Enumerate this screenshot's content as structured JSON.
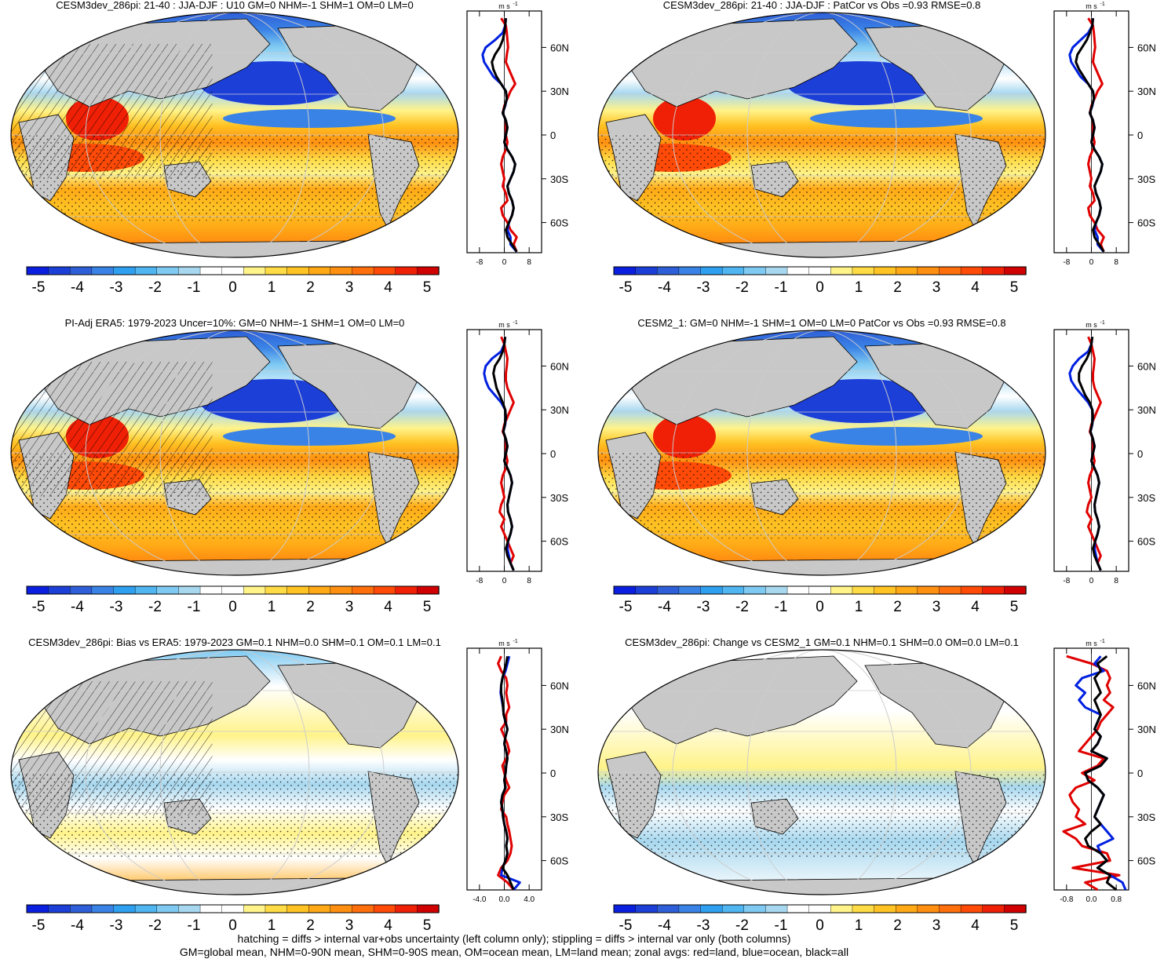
{
  "figure": {
    "footnote_line1": "hatching = diffs > internal var+obs uncertainty (left column only); stippling = diffs > internal var only (both columns)",
    "footnote_line2": "GM=global mean, NHM=0-90N mean, SHM=0-90S mean, OM=ocean mean, LM=land mean; zonal avgs: red=land, blue=ocean, black=all",
    "colorbar_ticks": [
      "-5",
      "-4",
      "-3",
      "-2",
      "-1",
      "0",
      "1",
      "2",
      "3",
      "4",
      "5"
    ],
    "colorbar_colors": [
      "#0a1fe0",
      "#1c3fd8",
      "#2f5fd8",
      "#3a83e6",
      "#2fa0f0",
      "#4fb6f2",
      "#7fcaf2",
      "#a8d8ef",
      "#ffffff",
      "#ffffff",
      "#fff38a",
      "#ffdb45",
      "#ffc324",
      "#ffa916",
      "#ff8f10",
      "#ff6f0c",
      "#ff4a08",
      "#f02006",
      "#d00000"
    ],
    "profile_unit": "m s",
    "profile_unit_exp": "-1",
    "lat_labels": [
      "60N",
      "30N",
      "0",
      "30S",
      "60S"
    ],
    "map_palette": {
      "gray_land": "#c8c8c8",
      "ocean_white": "#ffffff"
    }
  },
  "chart_data": [
    {
      "type": "heatmap",
      "panel": "top-left",
      "title": "CESM3dev_286pi: 21-40 : JJA-DJF : U10 GM=0 NHM=-1 SHM=1 OM=0 LM=0",
      "variable": "U10 JJA-DJF",
      "colorbar_range": [
        -5,
        5
      ],
      "hatching": true,
      "zonal_profile": {
        "xticks": [
          "-8",
          "0",
          "8"
        ],
        "xlim": [
          -12,
          12
        ],
        "lat": [
          80,
          75,
          70,
          65,
          60,
          55,
          50,
          45,
          40,
          35,
          30,
          25,
          20,
          15,
          10,
          5,
          0,
          -5,
          -10,
          -15,
          -20,
          -25,
          -30,
          -35,
          -40,
          -45,
          -50,
          -55,
          -60,
          -65,
          -70,
          -75,
          -80
        ],
        "all": [
          0.5,
          0.3,
          0,
          -0.5,
          -1.5,
          -3,
          -4,
          -3.5,
          -2.5,
          -1,
          0.5,
          0.8,
          0.2,
          -0.5,
          0.5,
          1,
          0.5,
          0,
          1,
          2.5,
          3.5,
          3,
          2,
          1,
          1.5,
          2.5,
          3,
          2.5,
          1.5,
          0.5,
          1,
          2.5,
          4
        ],
        "ocean": [
          0.5,
          0.3,
          -0.5,
          -3,
          -6,
          -7,
          -6.5,
          -5,
          -3.5,
          -1,
          0.5,
          0.8,
          0.3,
          -0.5,
          0.5,
          1,
          0.5,
          0,
          1,
          2.5,
          3.5,
          3,
          2,
          1,
          1.5,
          2.5,
          3,
          2.5,
          1.5,
          1,
          2,
          2,
          4
        ],
        "land": [
          -1,
          0.5,
          0.8,
          1,
          1.2,
          0.8,
          0.5,
          1.5,
          2.5,
          3.5,
          2,
          1,
          0,
          -0.5,
          0.5,
          0.5,
          0.5,
          1,
          0.5,
          -0.5,
          -1,
          -0.5,
          0,
          -0.5,
          0.5,
          1,
          -1,
          -0.5,
          1,
          2,
          4,
          3,
          4
        ]
      }
    },
    {
      "type": "heatmap",
      "panel": "top-right",
      "title": "CESM3dev_286pi: 21-40 : JJA-DJF : PatCor vs Obs =0.93 RMSE=0.8",
      "variable": "U10 JJA-DJF",
      "colorbar_range": [
        -5,
        5
      ],
      "hatching": false,
      "zonal_profile": {
        "xticks": [
          "-8",
          "0",
          "8"
        ],
        "xlim": [
          -12,
          12
        ],
        "lat": [
          80,
          75,
          70,
          65,
          60,
          55,
          50,
          45,
          40,
          35,
          30,
          25,
          20,
          15,
          10,
          5,
          0,
          -5,
          -10,
          -15,
          -20,
          -25,
          -30,
          -35,
          -40,
          -45,
          -50,
          -55,
          -60,
          -65,
          -70,
          -75,
          -80
        ],
        "all": [
          0.5,
          0.3,
          -0.5,
          -1.5,
          -3,
          -4.5,
          -5,
          -4,
          -2.5,
          -1,
          0.5,
          0.8,
          0.2,
          -0.5,
          0.5,
          1,
          0.5,
          0,
          1,
          2.5,
          3.5,
          3,
          2,
          1,
          1.5,
          2.5,
          3,
          2.5,
          1.5,
          0.5,
          1,
          2.5,
          4
        ],
        "ocean": [
          0.5,
          0.3,
          -1,
          -3.5,
          -6,
          -7,
          -6.5,
          -5,
          -3.5,
          -1,
          0.5,
          0.8,
          0.3,
          -0.5,
          0.5,
          1,
          0.5,
          0,
          1,
          2.5,
          3.5,
          3,
          2,
          1,
          1.5,
          2.5,
          3,
          2.5,
          1.5,
          1,
          2,
          2,
          4
        ],
        "land": [
          -1,
          0.5,
          0.8,
          1,
          1.2,
          0.8,
          0.5,
          1.5,
          2.5,
          3.5,
          2,
          1,
          0,
          -0.5,
          0.5,
          0.5,
          0.5,
          1,
          0.5,
          -0.5,
          -1,
          -0.5,
          0,
          -0.5,
          0.5,
          1,
          -1,
          -0.5,
          1,
          2,
          4,
          3,
          4
        ]
      }
    },
    {
      "type": "heatmap",
      "panel": "middle-left",
      "title": "PI-Adj ERA5: 1979-2023 Uncer=10%: GM=0 NHM=-1 SHM=1 OM=0 LM=0",
      "variable": "U10 JJA-DJF",
      "colorbar_range": [
        -5,
        5
      ],
      "hatching": true,
      "zonal_profile": {
        "xticks": [
          "-8",
          "0",
          "8"
        ],
        "xlim": [
          -12,
          12
        ],
        "lat": [
          80,
          75,
          70,
          65,
          60,
          55,
          50,
          45,
          40,
          35,
          30,
          25,
          20,
          15,
          10,
          5,
          0,
          -5,
          -10,
          -15,
          -20,
          -25,
          -30,
          -35,
          -40,
          -45,
          -50,
          -55,
          -60,
          -65,
          -70,
          -75,
          -80
        ],
        "all": [
          0.3,
          0,
          -0.5,
          -1.5,
          -3,
          -3.5,
          -3,
          -2.5,
          -1.5,
          -0.5,
          0.3,
          0.5,
          0.2,
          -0.3,
          0.5,
          1,
          0.5,
          0,
          1,
          2,
          2.5,
          2,
          1.5,
          1,
          1.2,
          2,
          2.5,
          2,
          1.2,
          0.5,
          1,
          2,
          3
        ],
        "ocean": [
          0.3,
          0,
          -1,
          -4,
          -6,
          -6.5,
          -6,
          -5,
          -3,
          -1,
          0.3,
          0.5,
          0.3,
          -0.3,
          0.5,
          1,
          0.5,
          0,
          1,
          2,
          2.5,
          2,
          1.5,
          1,
          1.2,
          2,
          2.5,
          2,
          1.2,
          1,
          1.5,
          2,
          3
        ],
        "land": [
          -1,
          0,
          0.5,
          1,
          0.8,
          0.5,
          0.5,
          1,
          2,
          3,
          2,
          1,
          0,
          -0.5,
          0.5,
          0.5,
          0.5,
          1,
          0.5,
          -0.5,
          -1,
          -0.5,
          0,
          -1,
          -1.5,
          0,
          -1,
          0,
          1,
          2,
          3,
          2,
          3
        ]
      }
    },
    {
      "type": "heatmap",
      "panel": "middle-right",
      "title": "CESM2_1: GM=0 NHM=-1 SHM=1 OM=0 LM=0 PatCor vs Obs =0.93 RMSE=0.8",
      "variable": "U10 JJA-DJF",
      "colorbar_range": [
        -5,
        5
      ],
      "hatching": false,
      "zonal_profile": {
        "xticks": [
          "-8",
          "0",
          "8"
        ],
        "xlim": [
          -12,
          12
        ],
        "lat": [
          80,
          75,
          70,
          65,
          60,
          55,
          50,
          45,
          40,
          35,
          30,
          25,
          20,
          15,
          10,
          5,
          0,
          -5,
          -10,
          -15,
          -20,
          -25,
          -30,
          -35,
          -40,
          -45,
          -50,
          -55,
          -60,
          -65,
          -70,
          -75,
          -80
        ],
        "all": [
          0.3,
          0,
          -0.5,
          -1.5,
          -3,
          -4,
          -4,
          -3,
          -2,
          -0.5,
          0.3,
          0.5,
          0.2,
          -0.3,
          0.5,
          1,
          0.5,
          0,
          1,
          2,
          2.5,
          2,
          1.5,
          1,
          1.2,
          2,
          2.5,
          2,
          1.2,
          0.5,
          1,
          2,
          3
        ],
        "ocean": [
          0.3,
          0,
          -1,
          -4,
          -6,
          -7,
          -6.5,
          -5,
          -3,
          -1,
          0.3,
          0.5,
          0.3,
          -0.3,
          0.5,
          1,
          0.5,
          0,
          1,
          2,
          2.5,
          2,
          1.5,
          1,
          1.2,
          2,
          2.5,
          2,
          1.2,
          1,
          1.5,
          2,
          3
        ],
        "land": [
          -1,
          0,
          0.5,
          1,
          0.8,
          0.5,
          0.5,
          1,
          2,
          3,
          2,
          1,
          0,
          -0.5,
          0.5,
          0.5,
          0.5,
          1,
          0.5,
          -0.5,
          -1,
          -0.5,
          0,
          -1,
          -1.5,
          0,
          -1,
          0,
          1,
          2,
          3,
          2,
          3
        ]
      }
    },
    {
      "type": "heatmap",
      "panel": "bottom-left",
      "title": "CESM3dev_286pi: Bias vs ERA5: 1979-2023 GM=0.1 NHM=0.0 SHM=0.1 OM=0.1 LM=0.1",
      "variable": "U10 JJA-DJF bias",
      "colorbar_range": [
        -5,
        5
      ],
      "hatching": true,
      "zonal_profile": {
        "xticks": [
          "-4.0",
          "0.0",
          "4.0"
        ],
        "xlim": [
          -6,
          6
        ],
        "lat": [
          80,
          75,
          70,
          65,
          60,
          55,
          50,
          45,
          40,
          35,
          30,
          25,
          20,
          15,
          10,
          5,
          0,
          -5,
          -10,
          -15,
          -20,
          -25,
          -30,
          -35,
          -40,
          -45,
          -50,
          -55,
          -60,
          -65,
          -70,
          -75,
          -80
        ],
        "all": [
          0.5,
          0.3,
          0,
          -0.3,
          -0.5,
          -0.5,
          -0.3,
          -0.2,
          -0.1,
          0.2,
          0.5,
          0.2,
          0,
          0.3,
          0.5,
          0.3,
          0.2,
          0,
          0.2,
          -0.3,
          -0.5,
          -0.3,
          -0.2,
          0,
          0.3,
          0.5,
          0.3,
          0.5,
          0.2,
          -0.3,
          0.5,
          1,
          1.5
        ],
        "ocean": [
          0.8,
          0.5,
          0.2,
          -0.3,
          -0.5,
          -0.6,
          -0.4,
          -0.2,
          -0.1,
          0.2,
          0.5,
          0.2,
          0,
          0.3,
          0.5,
          0.3,
          0.2,
          0,
          0.2,
          -0.3,
          -0.5,
          -0.3,
          -0.2,
          0,
          0.3,
          0.5,
          0.3,
          0.5,
          0.2,
          -0.3,
          -0.5,
          2.5,
          1.5
        ],
        "land": [
          -0.5,
          -1,
          -0.5,
          0.3,
          0.5,
          0.3,
          0.5,
          0.8,
          0.3,
          0.3,
          -0.5,
          0,
          0.5,
          0.8,
          0.3,
          -0.3,
          0,
          0.3,
          0.8,
          0,
          -0.3,
          -0.5,
          0.3,
          0.5,
          0.8,
          1,
          1.2,
          1,
          0.5,
          -0.5,
          -1,
          0.5,
          1.5
        ]
      }
    },
    {
      "type": "heatmap",
      "panel": "bottom-right",
      "title": "CESM3dev_286pi: Change vs CESM2_1 GM=0.1 NHM=0.1 SHM=0.0 OM=0.0 LM=0.1",
      "variable": "U10 JJA-DJF change",
      "colorbar_range": [
        -5,
        5
      ],
      "hatching": false,
      "zonal_profile": {
        "xticks": [
          "-0.8",
          "0.0",
          "0.8"
        ],
        "xlim": [
          -1.2,
          1.2
        ],
        "lat": [
          80,
          75,
          70,
          65,
          60,
          55,
          50,
          45,
          40,
          35,
          30,
          25,
          20,
          15,
          10,
          5,
          0,
          -5,
          -10,
          -15,
          -20,
          -25,
          -30,
          -35,
          -40,
          -45,
          -50,
          -55,
          -60,
          -65,
          -70,
          -75,
          -80
        ],
        "all": [
          0.5,
          0.2,
          0.3,
          0.1,
          0.2,
          0.3,
          0.1,
          0.2,
          0.3,
          0.2,
          0.1,
          0.3,
          0.2,
          0,
          0.5,
          0.3,
          -0.2,
          -0.1,
          0.2,
          0.4,
          0.3,
          0.2,
          0.1,
          0.3,
          0,
          -0.2,
          -0.1,
          0.3,
          0.5,
          0.2,
          0.6,
          0.5,
          0.8
        ],
        "ocean": [
          0.3,
          0.1,
          0.4,
          -0.3,
          -0.5,
          -0.2,
          -0.4,
          -0.2,
          0.3,
          0.2,
          0.1,
          0.3,
          0.2,
          0,
          0.5,
          0.3,
          -0.2,
          -0.1,
          0.2,
          0.4,
          0.3,
          0.2,
          0.1,
          0.3,
          0.5,
          0.7,
          0.2,
          0.3,
          0.5,
          0.2,
          0.6,
          1.0,
          1.1
        ],
        "land": [
          -0.8,
          0,
          0.5,
          0.6,
          0.5,
          0.6,
          0.4,
          0.7,
          0.5,
          0.3,
          0.2,
          0,
          -0.2,
          -0.4,
          0.4,
          0.2,
          -0.3,
          0.1,
          -0.5,
          -0.7,
          -0.6,
          -0.4,
          -0.5,
          -0.2,
          -0.9,
          -0.5,
          -0.3,
          0.5,
          0.6,
          -0.6,
          0.9,
          -0.2,
          0.2
        ]
      }
    }
  ]
}
